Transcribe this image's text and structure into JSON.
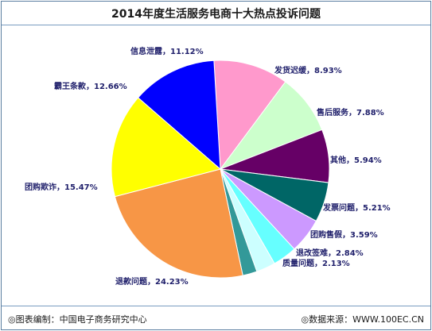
{
  "chart_data": {
    "type": "pie",
    "title": "2014年度生活服务电商十大热点投诉问题",
    "slices": [
      {
        "label": "信息泄露",
        "value": 11.12,
        "display": "11.12%",
        "color": "#ff99cc"
      },
      {
        "label": "发货迟缓",
        "value": 8.93,
        "display": "8.93%",
        "color": "#ccffcc"
      },
      {
        "label": "售后服务",
        "value": 7.88,
        "display": "7.88%",
        "color": "#660066"
      },
      {
        "label": "其他",
        "value": 5.94,
        "display": "5.94%",
        "color": "#006666"
      },
      {
        "label": "发票问题",
        "value": 5.21,
        "display": "5.21%",
        "color": "#cc99ff"
      },
      {
        "label": "团购售假",
        "value": 3.59,
        "display": "3.59%",
        "color": "#66ffff"
      },
      {
        "label": "退改签难",
        "value": 2.84,
        "display": "2.84%",
        "color": "#ccffff"
      },
      {
        "label": "质量问题",
        "value": 2.13,
        "display": "2.13%",
        "color": "#339999"
      },
      {
        "label": "退款问题",
        "value": 24.23,
        "display": "24.23%",
        "color": "#f79646"
      },
      {
        "label": "团购欺诈",
        "value": 15.47,
        "display": "15.47%",
        "color": "#ffff00"
      },
      {
        "label": "霸王条款",
        "value": 12.66,
        "display": "12.66%",
        "color": "#0000ff"
      }
    ]
  },
  "footer": {
    "source_left": "◎图表编制：中国电子商务研究中心",
    "source_right": "◎数据来源：WWW.100EC.CN"
  }
}
